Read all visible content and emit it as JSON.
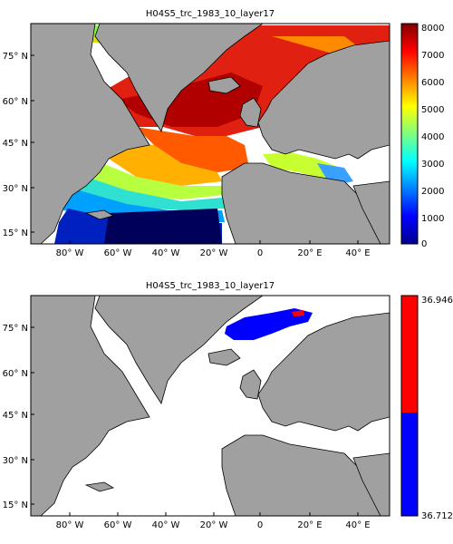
{
  "chart_data": [
    {
      "type": "heatmap",
      "title": "H04S5_trc_1983_10_layer17",
      "x_ticks": [
        "80° W",
        "60° W",
        "40° W",
        "20° W",
        "0",
        "20° E",
        "40° E"
      ],
      "y_ticks": [
        "75° N",
        "60° N",
        "45° N",
        "30° N",
        "15° N"
      ],
      "colorbar": {
        "colormap": "jet",
        "range": [
          0,
          8000
        ],
        "ticks": [
          "0",
          "1000",
          "2000",
          "3000",
          "4000",
          "5000",
          "6000",
          "7000",
          "8000"
        ]
      },
      "land_color": "#a0a0a0",
      "nodata_color": "#ffffff"
    },
    {
      "type": "heatmap",
      "title": "H04S5_trc_1983_10_layer17",
      "x_ticks": [
        "80° W",
        "60° W",
        "40° W",
        "20° W",
        "0",
        "20° E",
        "40° E"
      ],
      "y_ticks": [
        "75° N",
        "60° N",
        "45° N",
        "30° N",
        "15° N"
      ],
      "colorbar": {
        "colormap": "two-class",
        "range": [
          36.712,
          36.946
        ],
        "ticks": [
          "36.946",
          "36.712"
        ],
        "colors": [
          "#ff0000",
          "#0000ff"
        ],
        "split_fraction": 0.47
      },
      "land_color": "#a0a0a0",
      "nodata_color": "#ffffff"
    }
  ]
}
